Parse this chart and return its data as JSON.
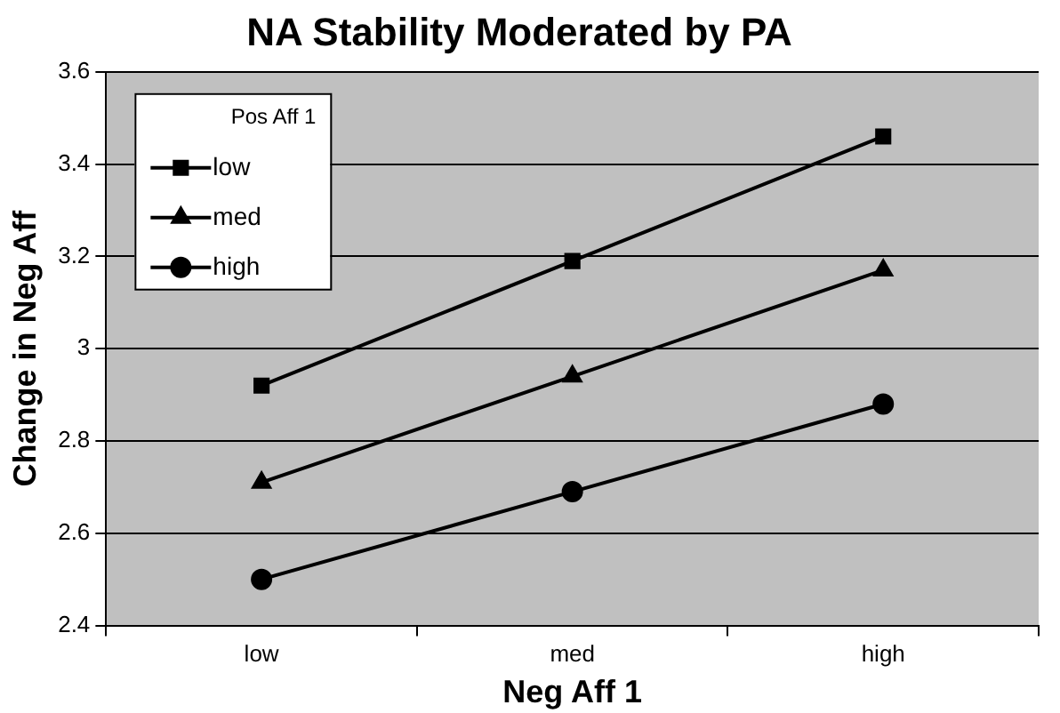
{
  "chart_data": {
    "type": "line",
    "title": "NA Stability Moderated by PA",
    "xlabel": "Neg Aff 1",
    "ylabel": "Change in Neg Aff",
    "legend_title": "Pos Aff 1",
    "categories": [
      "low",
      "med",
      "high"
    ],
    "series": [
      {
        "name": "low",
        "color": "#000000",
        "marker": "square",
        "values": [
          2.92,
          3.19,
          3.46
        ]
      },
      {
        "name": "med",
        "color": "#000000",
        "marker": "triangle",
        "values": [
          2.71,
          2.94,
          3.17
        ]
      },
      {
        "name": "high",
        "color": "#000000",
        "marker": "circle",
        "values": [
          2.5,
          2.69,
          2.88
        ]
      }
    ],
    "ylim": [
      2.4,
      3.6
    ],
    "yticks": [
      2.4,
      2.6,
      2.8,
      3,
      3.2,
      3.4,
      3.6
    ],
    "grid": "y",
    "legend": "top left",
    "line_style": "solid"
  }
}
